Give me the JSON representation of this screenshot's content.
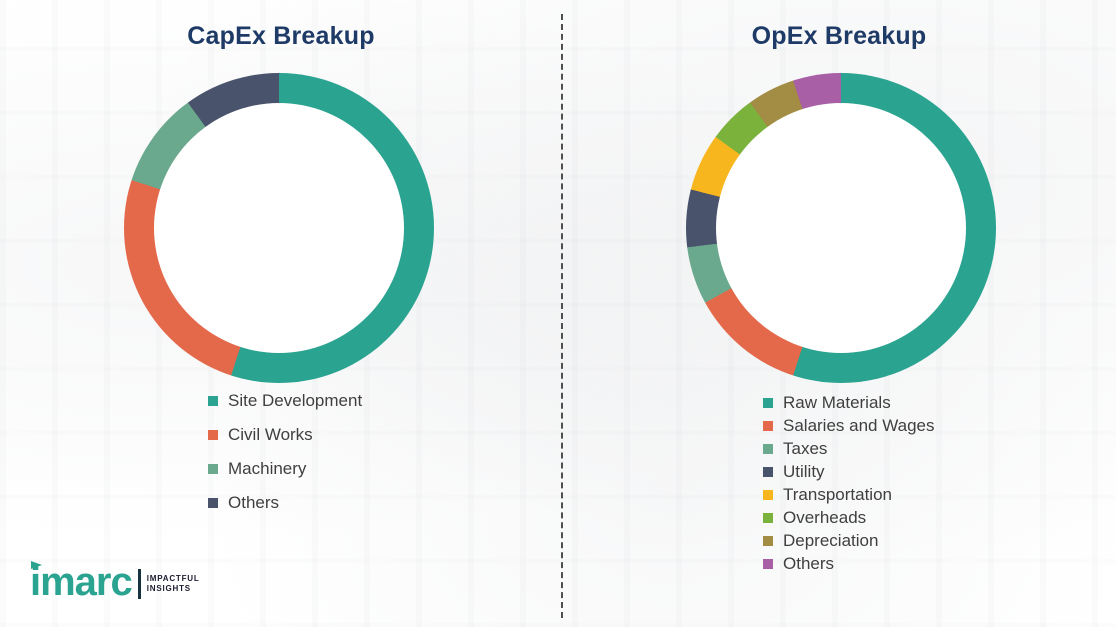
{
  "chart_data": [
    {
      "type": "pie",
      "subtype": "donut",
      "title": "CapEx Breakup",
      "categories": [
        "Site Development",
        "Civil Works",
        "Machinery",
        "Others"
      ],
      "values": [
        55,
        25,
        10,
        10
      ],
      "colors": [
        "#2AA390",
        "#E4694B",
        "#6BA98E",
        "#49536B"
      ],
      "start_angle_deg": 0,
      "direction": "clockwise",
      "legend_position": "below-left",
      "data_labels": "none"
    },
    {
      "type": "pie",
      "subtype": "donut",
      "title": "OpEx Breakup",
      "categories": [
        "Raw Materials",
        "Salaries and Wages",
        "Taxes",
        "Utility",
        "Transportation",
        "Overheads",
        "Depreciation",
        "Others"
      ],
      "values": [
        55,
        12,
        6,
        6,
        6,
        5,
        5,
        5
      ],
      "colors": [
        "#2AA390",
        "#E4694B",
        "#6BA98E",
        "#49536B",
        "#F7B61E",
        "#7AB23C",
        "#A38D45",
        "#A85FA5"
      ],
      "start_angle_deg": 0,
      "direction": "clockwise",
      "legend_position": "below-right",
      "data_labels": "none"
    }
  ],
  "brand": {
    "name": "imarc",
    "tagline_line1": "IMPACTFUL",
    "tagline_line2": "INSIGHTS",
    "color": "#2AA390"
  },
  "titles_color": "#1E3A66"
}
